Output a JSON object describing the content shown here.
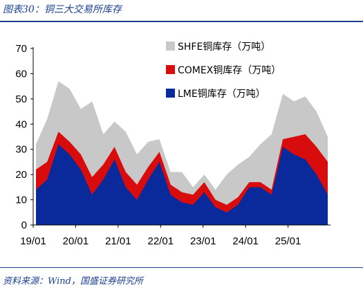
{
  "figure": {
    "title": "图表30：铜三大交易所库存",
    "source": "资料来源：Wind，国盛证券研究所"
  },
  "chart_data": {
    "type": "area",
    "stacked": true,
    "title": "",
    "xlabel": "",
    "ylabel": "",
    "ylim": [
      0,
      70
    ],
    "yticks": [
      0,
      10,
      20,
      30,
      40,
      50,
      60,
      70
    ],
    "xticks": [
      "19/01",
      "20/01",
      "21/01",
      "22/01",
      "23/01",
      "24/01",
      "25/01"
    ],
    "x": [
      "19/01",
      "19/04",
      "19/07",
      "19/10",
      "20/01",
      "20/04",
      "20/07",
      "20/10",
      "21/01",
      "21/04",
      "21/07",
      "21/10",
      "22/01",
      "22/04",
      "22/07",
      "22/10",
      "23/01",
      "23/04",
      "23/07",
      "23/10",
      "24/01",
      "24/04",
      "24/07",
      "24/10",
      "25/01",
      "25/04",
      "25/07"
    ],
    "legend_position": "top-right",
    "grid": false,
    "series": [
      {
        "name": "LME铜库存（万吨）",
        "color": "#0a2a9c",
        "values": [
          14,
          18,
          32,
          28,
          22,
          12,
          18,
          26,
          15,
          10,
          18,
          25,
          12,
          9,
          8,
          13,
          7,
          5,
          8,
          15,
          15,
          12,
          31,
          28,
          26,
          20,
          12
        ]
      },
      {
        "name": "COMEX铜库存（万吨）",
        "color": "#d80c0c",
        "values": [
          8,
          7,
          5,
          5,
          6,
          7,
          6,
          5,
          6,
          6,
          5,
          4,
          4,
          4,
          4,
          4,
          3,
          3,
          3,
          2,
          2,
          2,
          3,
          7,
          10,
          11,
          13
        ]
      },
      {
        "name": "SHFE铜库存（万吨）",
        "color": "#c8c8c8",
        "values": [
          10,
          17,
          20,
          21,
          18,
          30,
          12,
          10,
          16,
          12,
          10,
          5,
          5,
          8,
          3,
          3,
          4,
          12,
          13,
          10,
          15,
          22,
          18,
          14,
          15,
          14,
          10
        ]
      }
    ]
  }
}
